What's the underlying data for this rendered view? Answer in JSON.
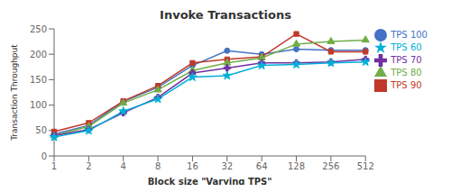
{
  "chart_data": {
    "type": "line",
    "title": "Invoke Transactions",
    "xlabel": "Block size \"Varying TPS\"",
    "ylabel": "Transaction Throughput",
    "categories": [
      "1",
      "2",
      "4",
      "8",
      "16",
      "32",
      "64",
      "128",
      "256",
      "512"
    ],
    "series": [
      {
        "name": "TPS 100",
        "color": "#4472C4",
        "marker": "circle",
        "values": [
          43,
          60,
          107,
          135,
          178,
          207,
          200,
          210,
          208,
          208
        ]
      },
      {
        "name": "TPS 90",
        "color": "#C0392B",
        "marker": "square",
        "values": [
          48,
          65,
          108,
          138,
          183,
          190,
          195,
          240,
          205,
          205
        ]
      },
      {
        "name": "TPS 80",
        "color": "#70AD47",
        "marker": "triangle",
        "values": [
          40,
          58,
          104,
          130,
          168,
          183,
          193,
          220,
          225,
          228
        ]
      },
      {
        "name": "TPS 70",
        "color": "#7030A0",
        "marker": "cross",
        "values": [
          40,
          52,
          85,
          115,
          163,
          173,
          183,
          183,
          185,
          190
        ]
      },
      {
        "name": "TPS 60",
        "color": "#00B0D8",
        "marker": "star",
        "values": [
          37,
          50,
          88,
          112,
          155,
          158,
          178,
          180,
          183,
          185
        ]
      }
    ],
    "ylim": [
      0,
      250
    ],
    "yticks": [
      0,
      50,
      100,
      150,
      200,
      250
    ],
    "grid": false,
    "legend": "right"
  }
}
